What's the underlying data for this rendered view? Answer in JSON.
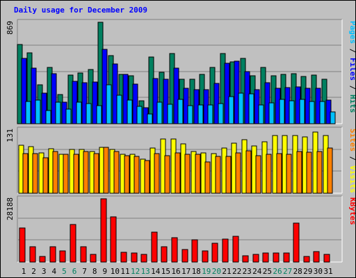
{
  "title": "Daily usage for December 2009",
  "chart_data": [
    {
      "type": "bar",
      "categories": [
        "1",
        "2",
        "3",
        "4",
        "5",
        "6",
        "7",
        "8",
        "9",
        "10",
        "11",
        "12",
        "13",
        "14",
        "15",
        "16",
        "17",
        "18",
        "19",
        "20",
        "21",
        "22",
        "23",
        "24",
        "25",
        "26",
        "27",
        "28",
        "29",
        "30",
        "31"
      ],
      "ylim": [
        0,
        869
      ],
      "max_label": "869",
      "series": [
        {
          "name": "Pages",
          "color": "#00c0ff",
          "values": [
            193,
            205,
            112,
            185,
            126,
            186,
            173,
            155,
            333,
            244,
            205,
            149,
            85,
            182,
            166,
            207,
            156,
            163,
            158,
            174,
            233,
            259,
            255,
            159,
            180,
            208,
            198,
            211,
            192,
            188,
            101
          ]
        },
        {
          "name": "Files",
          "color": "#0000ff",
          "values": [
            561,
            474,
            261,
            426,
            185,
            365,
            350,
            358,
            636,
            513,
            420,
            339,
            138,
            385,
            379,
            477,
            304,
            293,
            291,
            348,
            516,
            535,
            445,
            292,
            354,
            303,
            310,
            314,
            302,
            302,
            201
          ]
        },
        {
          "name": "Hits",
          "color": "#008060",
          "values": [
            677,
            608,
            336,
            484,
            249,
            416,
            437,
            466,
            869,
            585,
            423,
            412,
            195,
            570,
            443,
            599,
            381,
            381,
            421,
            483,
            602,
            532,
            561,
            408,
            480,
            412,
            422,
            430,
            403,
            417,
            382
          ]
        }
      ],
      "axis_label_parts": [
        {
          "text": "Pages",
          "color": "#00c0ff"
        },
        {
          "text": " / ",
          "color": "#000000"
        },
        {
          "text": "Files",
          "color": "#0000ff"
        },
        {
          "text": " / ",
          "color": "#000000"
        },
        {
          "text": "Hits",
          "color": "#008060"
        }
      ]
    },
    {
      "type": "bar",
      "categories": [
        "1",
        "2",
        "3",
        "4",
        "5",
        "6",
        "7",
        "8",
        "9",
        "10",
        "11",
        "12",
        "13",
        "14",
        "15",
        "16",
        "17",
        "18",
        "19",
        "20",
        "21",
        "22",
        "23",
        "24",
        "25",
        "26",
        "27",
        "28",
        "29",
        "30",
        "31"
      ],
      "ylim": [
        0,
        131
      ],
      "max_label": "131",
      "series": [
        {
          "name": "Sites",
          "color": "#ff8000",
          "values": [
            82,
            82,
            73,
            87,
            81,
            80,
            86,
            82,
            95,
            87,
            78,
            77,
            67,
            82,
            78,
            84,
            80,
            81,
            65,
            76,
            77,
            84,
            88,
            78,
            81,
            82,
            81,
            87,
            85,
            86,
            93
          ]
        },
        {
          "name": "Visits",
          "color": "#ffff00",
          "values": [
            100,
            96,
            83,
            92,
            81,
            90,
            90,
            86,
            95,
            91,
            80,
            80,
            71,
            93,
            113,
            113,
            102,
            87,
            84,
            82,
            94,
            103,
            111,
            98,
            107,
            120,
            120,
            120,
            116,
            126,
            120
          ]
        }
      ],
      "axis_label_parts": [
        {
          "text": "Sites",
          "color": "#ff8000"
        },
        {
          "text": " / ",
          "color": "#000000"
        },
        {
          "text": "Visits",
          "color": "#ffff00"
        }
      ]
    },
    {
      "type": "bar",
      "categories": [
        "1",
        "2",
        "3",
        "4",
        "5",
        "6",
        "7",
        "8",
        "9",
        "10",
        "11",
        "12",
        "13",
        "14",
        "15",
        "16",
        "17",
        "18",
        "19",
        "20",
        "21",
        "22",
        "23",
        "24",
        "25",
        "26",
        "27",
        "28",
        "29",
        "30",
        "31"
      ],
      "ylim": [
        0,
        28188
      ],
      "max_label": "28188",
      "series": [
        {
          "name": "KBytes",
          "color": "#ff0000",
          "values": [
            15190,
            6700,
            2470,
            6700,
            4940,
            16600,
            6700,
            3530,
            28188,
            20100,
            4240,
            3880,
            3530,
            13400,
            6700,
            10900,
            5650,
            9880,
            4940,
            8470,
            10200,
            11600,
            2820,
            3530,
            3880,
            3880,
            3880,
            17300,
            2470,
            4590,
            3530
          ]
        }
      ],
      "axis_label_parts": [
        {
          "text": "KBytes",
          "color": "#ff0000"
        }
      ]
    }
  ],
  "x_axis": {
    "labels": [
      "1",
      "2",
      "3",
      "4",
      "5",
      "6",
      "7",
      "8",
      "9",
      "10",
      "11",
      "12",
      "13",
      "14",
      "15",
      "16",
      "17",
      "18",
      "19",
      "20",
      "21",
      "22",
      "23",
      "24",
      "25",
      "26",
      "27",
      "28",
      "29",
      "30",
      "31"
    ],
    "weekend_days": [
      "5",
      "6",
      "12",
      "13",
      "19",
      "20",
      "26",
      "27"
    ],
    "weekday_color": "#000000",
    "weekend_color": "#008060"
  },
  "colors": {
    "background": "#c0c0c0",
    "title": "#0000ff",
    "panel_border_dark": "#808080",
    "panel_border_light": "#ffffff",
    "bar_outline": "#000000"
  }
}
